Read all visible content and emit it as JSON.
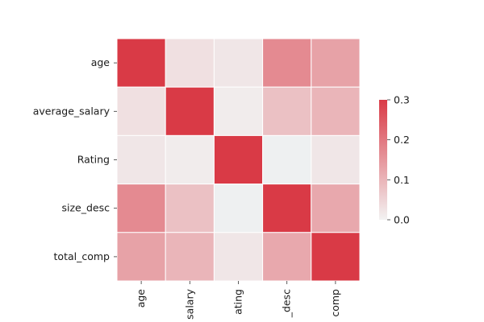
{
  "chart_data": {
    "type": "heatmap",
    "title": "",
    "xlabel": "",
    "ylabel": "",
    "row_labels": [
      "age",
      "average_salary",
      "Rating",
      "size_desc",
      "total_comp"
    ],
    "col_labels": [
      "age",
      "salary",
      "ating",
      "_desc",
      "comp"
    ],
    "values": [
      [
        0.3,
        0.03,
        0.02,
        0.17,
        0.13
      ],
      [
        0.03,
        0.3,
        0.01,
        0.08,
        0.1
      ],
      [
        0.02,
        0.01,
        0.3,
        -0.01,
        0.02
      ],
      [
        0.17,
        0.08,
        -0.01,
        0.3,
        0.12
      ],
      [
        0.13,
        0.1,
        0.02,
        0.12,
        0.3
      ]
    ],
    "colorbar": {
      "vmin": 0.0,
      "vmax": 0.3,
      "ticks": [
        "0.0",
        "0.1",
        "0.2",
        "0.3"
      ],
      "tick_values": [
        0.0,
        0.1,
        0.2,
        0.3
      ],
      "low_color": "#e9eef0",
      "neutral_color": "#f2f2f2",
      "high_color": "#d93a46"
    },
    "grid": false,
    "legend": "right"
  }
}
